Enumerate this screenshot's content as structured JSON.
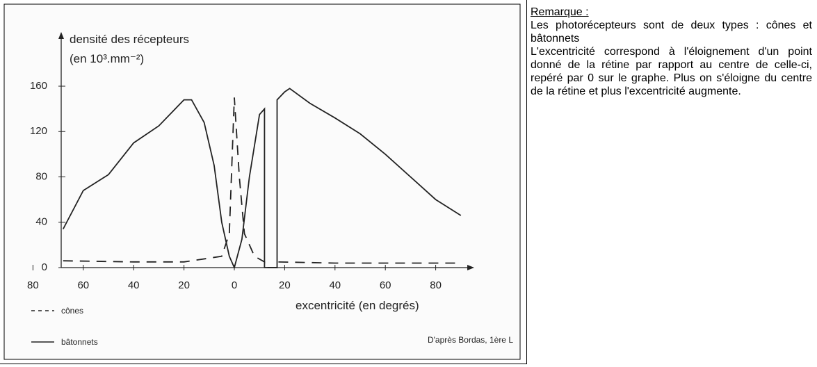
{
  "chart_data": {
    "type": "line",
    "title": "densité des récepteurs",
    "subtitle": "(en 10³.mm⁻²)",
    "x_label": "excentricité (en degrés)",
    "source": "D'après Bordas, 1ère L",
    "xlim": [
      -85,
      92
    ],
    "xticks": [
      {
        "value": -80,
        "label": "80"
      },
      {
        "value": -60,
        "label": "60"
      },
      {
        "value": -40,
        "label": "40"
      },
      {
        "value": -20,
        "label": "20"
      },
      0,
      20,
      40,
      60,
      80
    ],
    "ylim": [
      0,
      160
    ],
    "yticks": [
      0,
      40,
      80,
      120,
      160
    ],
    "series": [
      {
        "name": "cônes",
        "color": "#222222",
        "dash": true,
        "x": [
          -68,
          -40,
          -20,
          -5,
          -2,
          0,
          2,
          4,
          8,
          12,
          12,
          17,
          17,
          40,
          60,
          80,
          88
        ],
        "values": [
          6,
          5,
          5,
          10,
          30,
          150,
          80,
          30,
          10,
          5,
          0,
          0,
          5,
          4,
          4,
          4,
          4
        ]
      },
      {
        "name": "bâtonnets",
        "color": "#222222",
        "dash": false,
        "x": [
          -68,
          -60,
          -50,
          -40,
          -30,
          -20,
          -17,
          -12,
          -8,
          -5,
          -2,
          0,
          3,
          6,
          10,
          12,
          12,
          17,
          17,
          20,
          22,
          30,
          40,
          50,
          60,
          70,
          80,
          90
        ],
        "values": [
          34,
          68,
          82,
          110,
          125,
          148,
          148,
          128,
          90,
          40,
          10,
          0,
          25,
          80,
          135,
          140,
          0,
          0,
          148,
          155,
          158,
          145,
          132,
          118,
          100,
          80,
          60,
          46
        ]
      }
    ]
  },
  "remark": {
    "title": "Remarque :",
    "paragraphs": [
      "Les photorécepteurs sont de deux types : cônes et bâtonnets",
      "L'excentricité correspond à l'éloignement d'un point donné de la rétine par rapport au centre de celle-ci, repéré par 0 sur le graphe. Plus on s'éloigne du centre de la rétine et plus l'excentricité augmente."
    ]
  }
}
